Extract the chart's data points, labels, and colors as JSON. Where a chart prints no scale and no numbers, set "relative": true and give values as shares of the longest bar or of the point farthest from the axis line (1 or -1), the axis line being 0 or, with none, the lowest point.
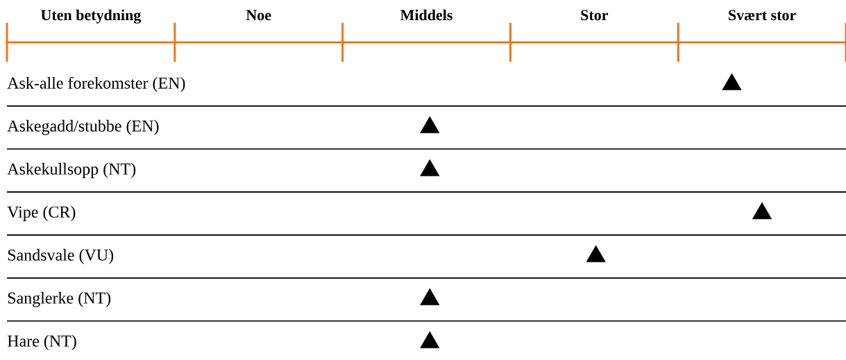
{
  "chart_data": {
    "type": "scatter",
    "orientation": "horizontal",
    "relative": true,
    "categories": [
      "Ask-alle forekomster (EN)",
      "Askegadd/stubbe (EN)",
      "Askekullsopp (NT)",
      "Vipe (CR)",
      "Sandsvale (VU)",
      "Sanglerke (NT)",
      "Hare (NT)"
    ],
    "values": [
      0.96,
      0.56,
      0.56,
      1,
      0.78,
      0.56,
      0.56
    ],
    "color": "#000000",
    "marker": "triangle",
    "grid": "y",
    "annotations": [
      "Uten betydning",
      "Noe",
      "Middels",
      "Stor",
      "Svært stor"
    ]
  }
}
